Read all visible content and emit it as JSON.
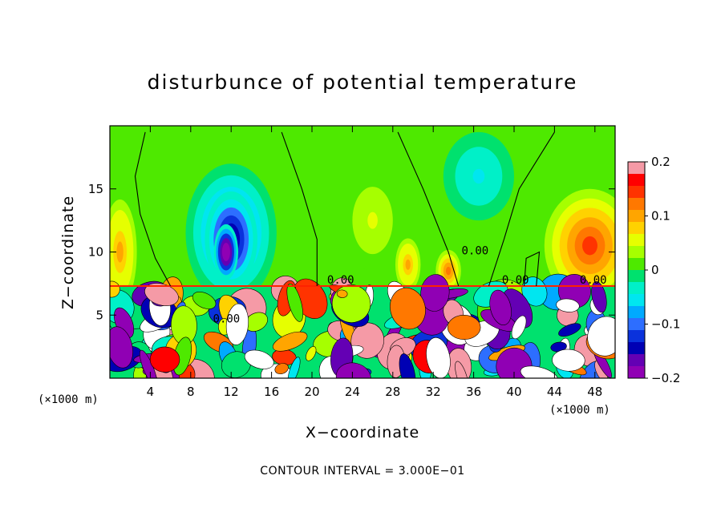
{
  "chart_data": {
    "type": "heatmap",
    "title": "disturbunce of potential temperature",
    "xlabel": "X−coordinate",
    "ylabel": "Z−coordinate",
    "x_unit": "(×1000 m)",
    "x_unit_right": "(×1000 m)",
    "xlim": [
      0,
      50
    ],
    "ylim": [
      0,
      20
    ],
    "x_ticks": [
      4,
      8,
      12,
      16,
      20,
      24,
      28,
      32,
      36,
      40,
      44,
      48
    ],
    "y_ticks": [
      5,
      10,
      15
    ],
    "colorbar": {
      "range": [
        -0.2,
        0.2
      ],
      "tick_values": [
        0.2,
        0.1,
        0,
        -0.1,
        -0.2
      ],
      "tick_labels": [
        "0.2",
        "0.1",
        "0",
        "−0.1",
        "−0.2"
      ],
      "colors": [
        "#f59aa6",
        "#ff0000",
        "#ff3300",
        "#ff7800",
        "#ffa500",
        "#ffd200",
        "#e6ff00",
        "#a6ff00",
        "#4ee900",
        "#00e16e",
        "#00f0c8",
        "#00e6f0",
        "#00aaff",
        "#2d6eff",
        "#0a32dc",
        "#0000b4",
        "#6400b4",
        "#9000b4"
      ]
    },
    "contour_labels": [
      "0.00",
      "0.00",
      "0.00",
      "0.00",
      "0.00"
    ],
    "contour_interval_label": "CONTOUR INTERVAL = 3.000E−01",
    "blobs": [
      {
        "x": 12,
        "z": 11.5,
        "rx": 4.5,
        "rz": 5.5,
        "value": -0.1
      },
      {
        "x": 12,
        "z": 11.0,
        "rx": 2.6,
        "rz": 3.8,
        "value": -0.18
      },
      {
        "x": 11.5,
        "z": 10.0,
        "rx": 1.2,
        "rz": 2.2,
        "value": -0.25
      },
      {
        "x": 47.5,
        "z": 10.5,
        "rx": 4.5,
        "rz": 4.5,
        "value": 0.15
      },
      {
        "x": 1.0,
        "z": 10.0,
        "rx": 2.0,
        "rz": 5.0,
        "value": 0.1
      },
      {
        "x": 29.5,
        "z": 9.0,
        "rx": 1.5,
        "rz": 2.5,
        "value": 0.1
      },
      {
        "x": 33.5,
        "z": 8.5,
        "rx": 1.5,
        "rz": 2.0,
        "value": 0.12
      },
      {
        "x": 26.0,
        "z": 12.5,
        "rx": 3.0,
        "rz": 4.0,
        "value": 0.05
      },
      {
        "x": 36.5,
        "z": 16.0,
        "rx": 3.5,
        "rz": 3.5,
        "value": -0.05
      }
    ]
  }
}
